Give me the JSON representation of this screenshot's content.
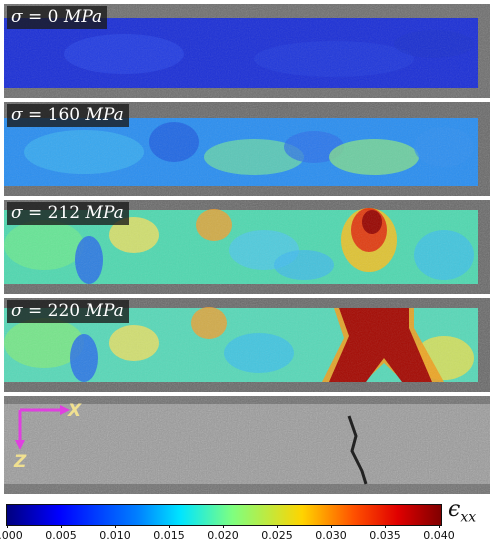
{
  "panels": [
    {
      "symbol": "σ",
      "equals": "=",
      "value": "0",
      "unit": "MPa"
    },
    {
      "symbol": "σ",
      "equals": "=",
      "value": "160",
      "unit": "MPa"
    },
    {
      "symbol": "σ",
      "equals": "=",
      "value": "212",
      "unit": "MPa"
    },
    {
      "symbol": "σ",
      "equals": "=",
      "value": "220",
      "unit": "MPa"
    }
  ],
  "axes": {
    "x_label": "X",
    "z_label": "Z",
    "arrow_color": "#e040e0"
  },
  "colorbar": {
    "label_symbol": "ϵ",
    "label_subscript": "xx",
    "ticks": [
      "0.000",
      "0.005",
      "0.010",
      "0.015",
      "0.020",
      "0.025",
      "0.030",
      "0.035",
      "0.040"
    ],
    "colormap": "jet"
  }
}
